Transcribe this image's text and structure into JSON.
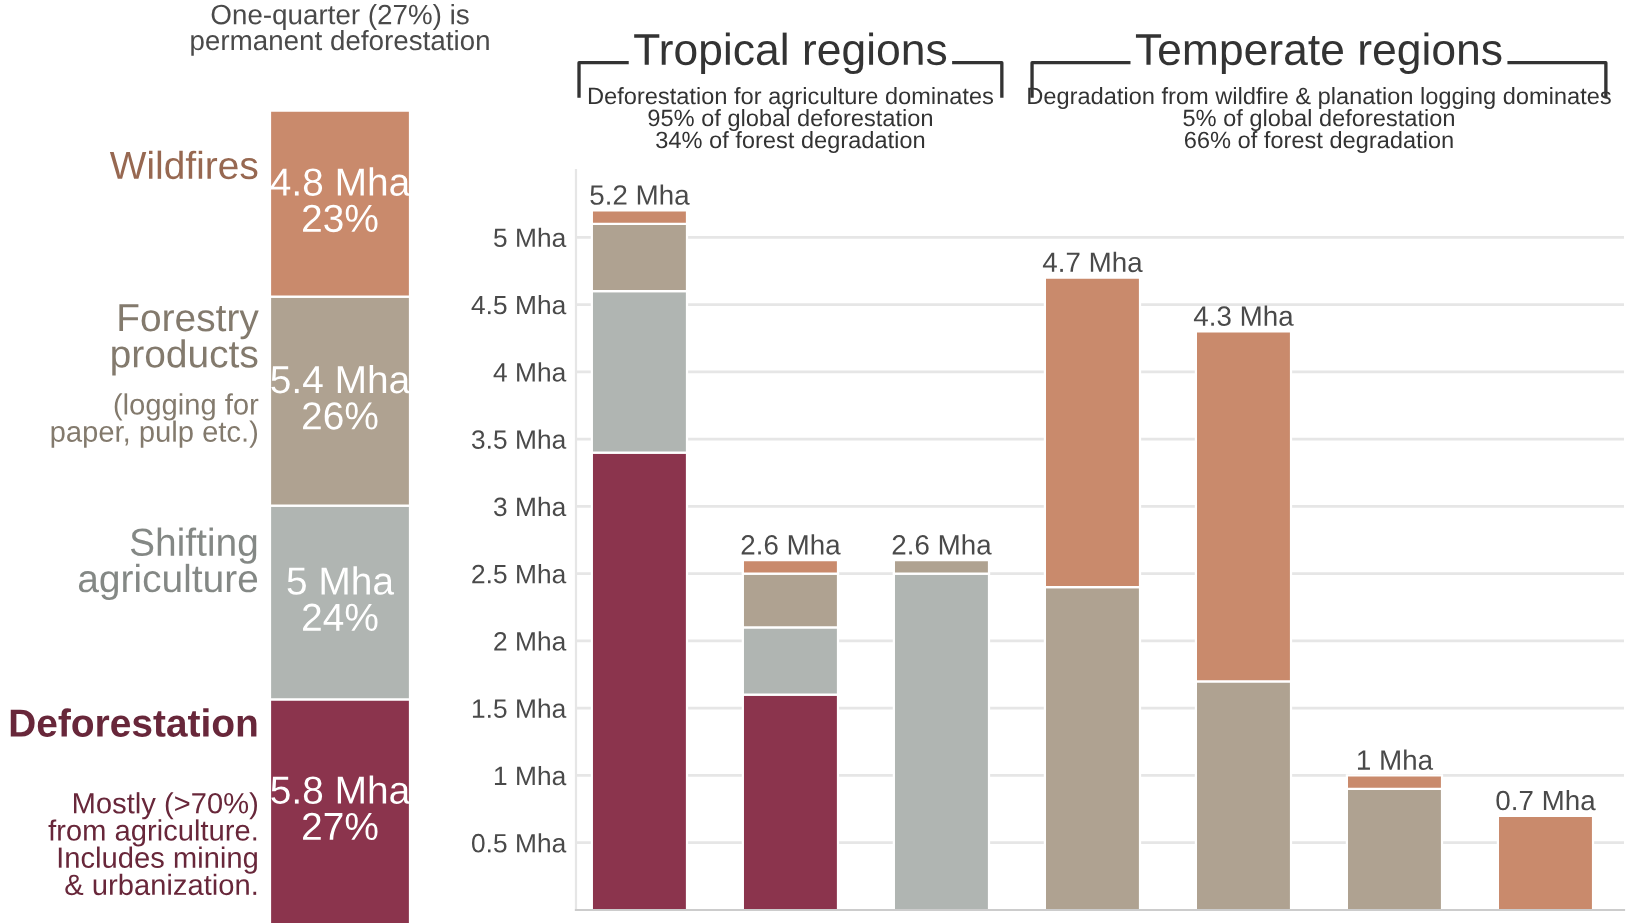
{
  "chart_data": [
    {
      "type": "bar",
      "stacked": true,
      "subtitle": "One-quarter (27%) is\npermanent deforestation",
      "categories": [
        null
      ],
      "grid": false,
      "series": [
        {
          "name": "Deforestation",
          "color": "#8b344d",
          "values": [
            5.8
          ],
          "value_labels": [
            "5.8 Mha\n27%"
          ]
        },
        {
          "name": "Shifting agriculture",
          "color": "#b0b5b2",
          "values": [
            5
          ],
          "value_labels": [
            "5 Mha\n24%"
          ]
        },
        {
          "name": "Forestry products",
          "color": "#afa291",
          "values": [
            5.4
          ],
          "value_labels": [
            "5.4 Mha\n26%"
          ]
        },
        {
          "name": "Wildfires",
          "color": "#c98a6c",
          "values": [
            4.8
          ],
          "value_labels": [
            "4.8 Mha\n23%"
          ]
        }
      ],
      "annotations": [
        "(logging for\npaper, pulp etc.)",
        "Mostly (>70%)\nfrom agriculture.\nIncludes mining\n& urbanization."
      ]
    },
    {
      "type": "bar",
      "stacked": true,
      "categories": [
        null,
        null,
        null,
        null,
        null,
        null,
        null
      ],
      "ylim": [
        0,
        5.5
      ],
      "grid": "y",
      "yticks": [
        {
          "value": 0.5,
          "label": "0.5 Mha"
        },
        {
          "value": 1,
          "label": "1 Mha"
        },
        {
          "value": 1.5,
          "label": "1.5 Mha"
        },
        {
          "value": 2,
          "label": "2 Mha"
        },
        {
          "value": 2.5,
          "label": "2.5 Mha"
        },
        {
          "value": 3,
          "label": "3 Mha"
        },
        {
          "value": 3.5,
          "label": "3.5 Mha"
        },
        {
          "value": 4,
          "label": "4 Mha"
        },
        {
          "value": 4.5,
          "label": "4.5 Mha"
        },
        {
          "value": 5,
          "label": "5 Mha"
        }
      ],
      "series": [
        {
          "color": "#8b344d",
          "values": [
            3.4,
            1.6,
            null,
            null,
            null,
            null,
            null
          ]
        },
        {
          "color": "#b0b5b2",
          "values": [
            1.2,
            0.5,
            2.5,
            null,
            null,
            null,
            null
          ]
        },
        {
          "color": "#afa291",
          "values": [
            0.5,
            0.4,
            0.1,
            2.4,
            1.7,
            0.9,
            null
          ]
        },
        {
          "color": "#c98a6c",
          "values": [
            0.1,
            0.1,
            null,
            2.3,
            2.6,
            0.1,
            0.7
          ]
        }
      ],
      "totals": [
        "5.2 Mha",
        "2.6 Mha",
        "2.6 Mha",
        "4.7 Mha",
        "4.3 Mha",
        "1 Mha",
        "0.7 Mha"
      ],
      "annotations": [
        "Tropical regions",
        "Deforestation for agriculture dominates\n95% of global deforestation\n34% of forest degradation",
        "Temperate regions",
        "Degradation from wildfire & planation logging dominates\n5% of global deforestation\n66% of forest degradation"
      ]
    }
  ]
}
